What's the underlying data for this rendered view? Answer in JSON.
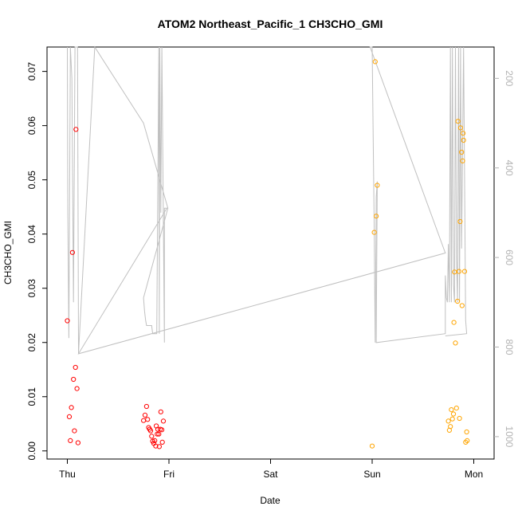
{
  "chart_data": {
    "type": "scatter",
    "title": "ATOM2 Northeast_Pacific_1 CH3CHO_GMI",
    "xlabel": "Date",
    "ylabel": "CH3CHO_GMI",
    "x_ticks": [
      "Thu",
      "Fri",
      "Sat",
      "Sun",
      "Mon"
    ],
    "xlim_days": [
      -0.2,
      4.2
    ],
    "ylim": [
      -0.0015,
      0.0745
    ],
    "y_ticks": [
      0.0,
      0.01,
      0.02,
      0.03,
      0.04,
      0.05,
      0.06,
      0.07
    ],
    "y_tick_labels": [
      "0.00",
      "0.01",
      "0.02",
      "0.03",
      "0.04",
      "0.05",
      "0.06",
      "0.07"
    ],
    "y2_label_color": "#b3b3b3",
    "y2_lim_reversed": [
      1050,
      130
    ],
    "y2_ticks": [
      200,
      400,
      600,
      800,
      1000
    ],
    "colors": {
      "series_red": "#ff0000",
      "series_orange": "#ffa500",
      "pressure_line": "#c0c0c0"
    },
    "series": [
      {
        "color": "#ff0000",
        "points": [
          [
            0.0,
            0.024
          ],
          [
            0.02,
            0.0063
          ],
          [
            0.03,
            0.0019
          ],
          [
            0.04,
            0.008
          ],
          [
            0.05,
            0.0366
          ],
          [
            0.06,
            0.0132
          ],
          [
            0.07,
            0.0037
          ],
          [
            0.08,
            0.0154
          ],
          [
            0.085,
            0.0593
          ],
          [
            0.095,
            0.0115
          ],
          [
            0.105,
            0.0015
          ],
          [
            0.75,
            0.0056
          ],
          [
            0.765,
            0.0066
          ],
          [
            0.78,
            0.0082
          ],
          [
            0.79,
            0.0058
          ],
          [
            0.8,
            0.0043
          ],
          [
            0.81,
            0.004
          ],
          [
            0.82,
            0.0037
          ],
          [
            0.83,
            0.0027
          ],
          [
            0.84,
            0.0018
          ],
          [
            0.85,
            0.0014
          ],
          [
            0.86,
            0.0019
          ],
          [
            0.87,
            0.0009
          ],
          [
            0.875,
            0.0046
          ],
          [
            0.885,
            0.0031
          ],
          [
            0.89,
            0.004
          ],
          [
            0.9,
            0.0031
          ],
          [
            0.905,
            0.0008
          ],
          [
            0.915,
            0.004
          ],
          [
            0.92,
            0.0072
          ],
          [
            0.93,
            0.0039
          ],
          [
            0.935,
            0.0016
          ],
          [
            0.945,
            0.0055
          ]
        ]
      },
      {
        "color": "#ffa500",
        "points": [
          [
            3.0,
            0.0009
          ],
          [
            3.02,
            0.0403
          ],
          [
            3.03,
            0.0718
          ],
          [
            3.04,
            0.0433
          ],
          [
            3.05,
            0.049
          ],
          [
            3.75,
            0.0055
          ],
          [
            3.76,
            0.0038
          ],
          [
            3.77,
            0.0045
          ],
          [
            3.78,
            0.0076
          ],
          [
            3.79,
            0.0059
          ],
          [
            3.8,
            0.0068
          ],
          [
            3.805,
            0.0237
          ],
          [
            3.81,
            0.033
          ],
          [
            3.82,
            0.0199
          ],
          [
            3.83,
            0.0079
          ],
          [
            3.84,
            0.0276
          ],
          [
            3.845,
            0.0608
          ],
          [
            3.855,
            0.0331
          ],
          [
            3.86,
            0.006
          ],
          [
            3.865,
            0.0423
          ],
          [
            3.87,
            0.0596
          ],
          [
            3.88,
            0.0551
          ],
          [
            3.885,
            0.0268
          ],
          [
            3.89,
            0.0535
          ],
          [
            3.895,
            0.0586
          ],
          [
            3.9,
            0.0573
          ],
          [
            3.91,
            0.0331
          ],
          [
            3.92,
            0.0016
          ],
          [
            3.93,
            0.0035
          ],
          [
            3.935,
            0.0019
          ]
        ]
      }
    ],
    "pressure_line": [
      [
        0.0,
        130
      ],
      [
        0.005,
        500
      ],
      [
        0.015,
        780
      ],
      [
        0.03,
        130
      ],
      [
        0.045,
        200
      ],
      [
        0.06,
        700
      ],
      [
        0.075,
        130
      ],
      [
        0.1,
        130
      ],
      [
        0.11,
        815
      ],
      [
        0.27,
        130
      ],
      [
        0.75,
        300
      ],
      [
        0.99,
        490
      ],
      [
        0.75,
        690
      ],
      [
        0.76,
        720
      ],
      [
        0.77,
        740
      ],
      [
        0.78,
        752
      ],
      [
        0.83,
        752
      ],
      [
        0.84,
        770
      ],
      [
        0.88,
        770
      ],
      [
        0.9,
        130
      ],
      [
        0.905,
        770
      ],
      [
        0.91,
        130
      ],
      [
        0.92,
        500
      ],
      [
        0.93,
        130
      ],
      [
        0.955,
        790
      ],
      [
        0.955,
        490
      ],
      [
        0.98,
        490
      ],
      [
        0.11,
        815
      ],
      [
        3.72,
        590
      ],
      [
        2.98,
        130
      ],
      [
        3.0,
        130
      ],
      [
        3.02,
        540
      ],
      [
        3.03,
        790
      ],
      [
        3.04,
        465
      ],
      [
        3.05,
        430
      ],
      [
        3.04,
        790
      ],
      [
        3.72,
        770
      ],
      [
        3.72,
        640
      ],
      [
        3.73,
        690
      ],
      [
        3.74,
        700
      ],
      [
        3.75,
        570
      ],
      [
        3.76,
        700
      ],
      [
        3.77,
        130
      ],
      [
        3.78,
        700
      ],
      [
        3.79,
        130
      ],
      [
        3.8,
        660
      ],
      [
        3.81,
        700
      ],
      [
        3.82,
        130
      ],
      [
        3.83,
        600
      ],
      [
        3.84,
        700
      ],
      [
        3.85,
        130
      ],
      [
        3.86,
        700
      ],
      [
        3.87,
        130
      ],
      [
        3.88,
        580
      ],
      [
        3.9,
        130
      ],
      [
        3.92,
        740
      ],
      [
        3.93,
        770
      ],
      [
        3.72,
        775
      ]
    ]
  }
}
